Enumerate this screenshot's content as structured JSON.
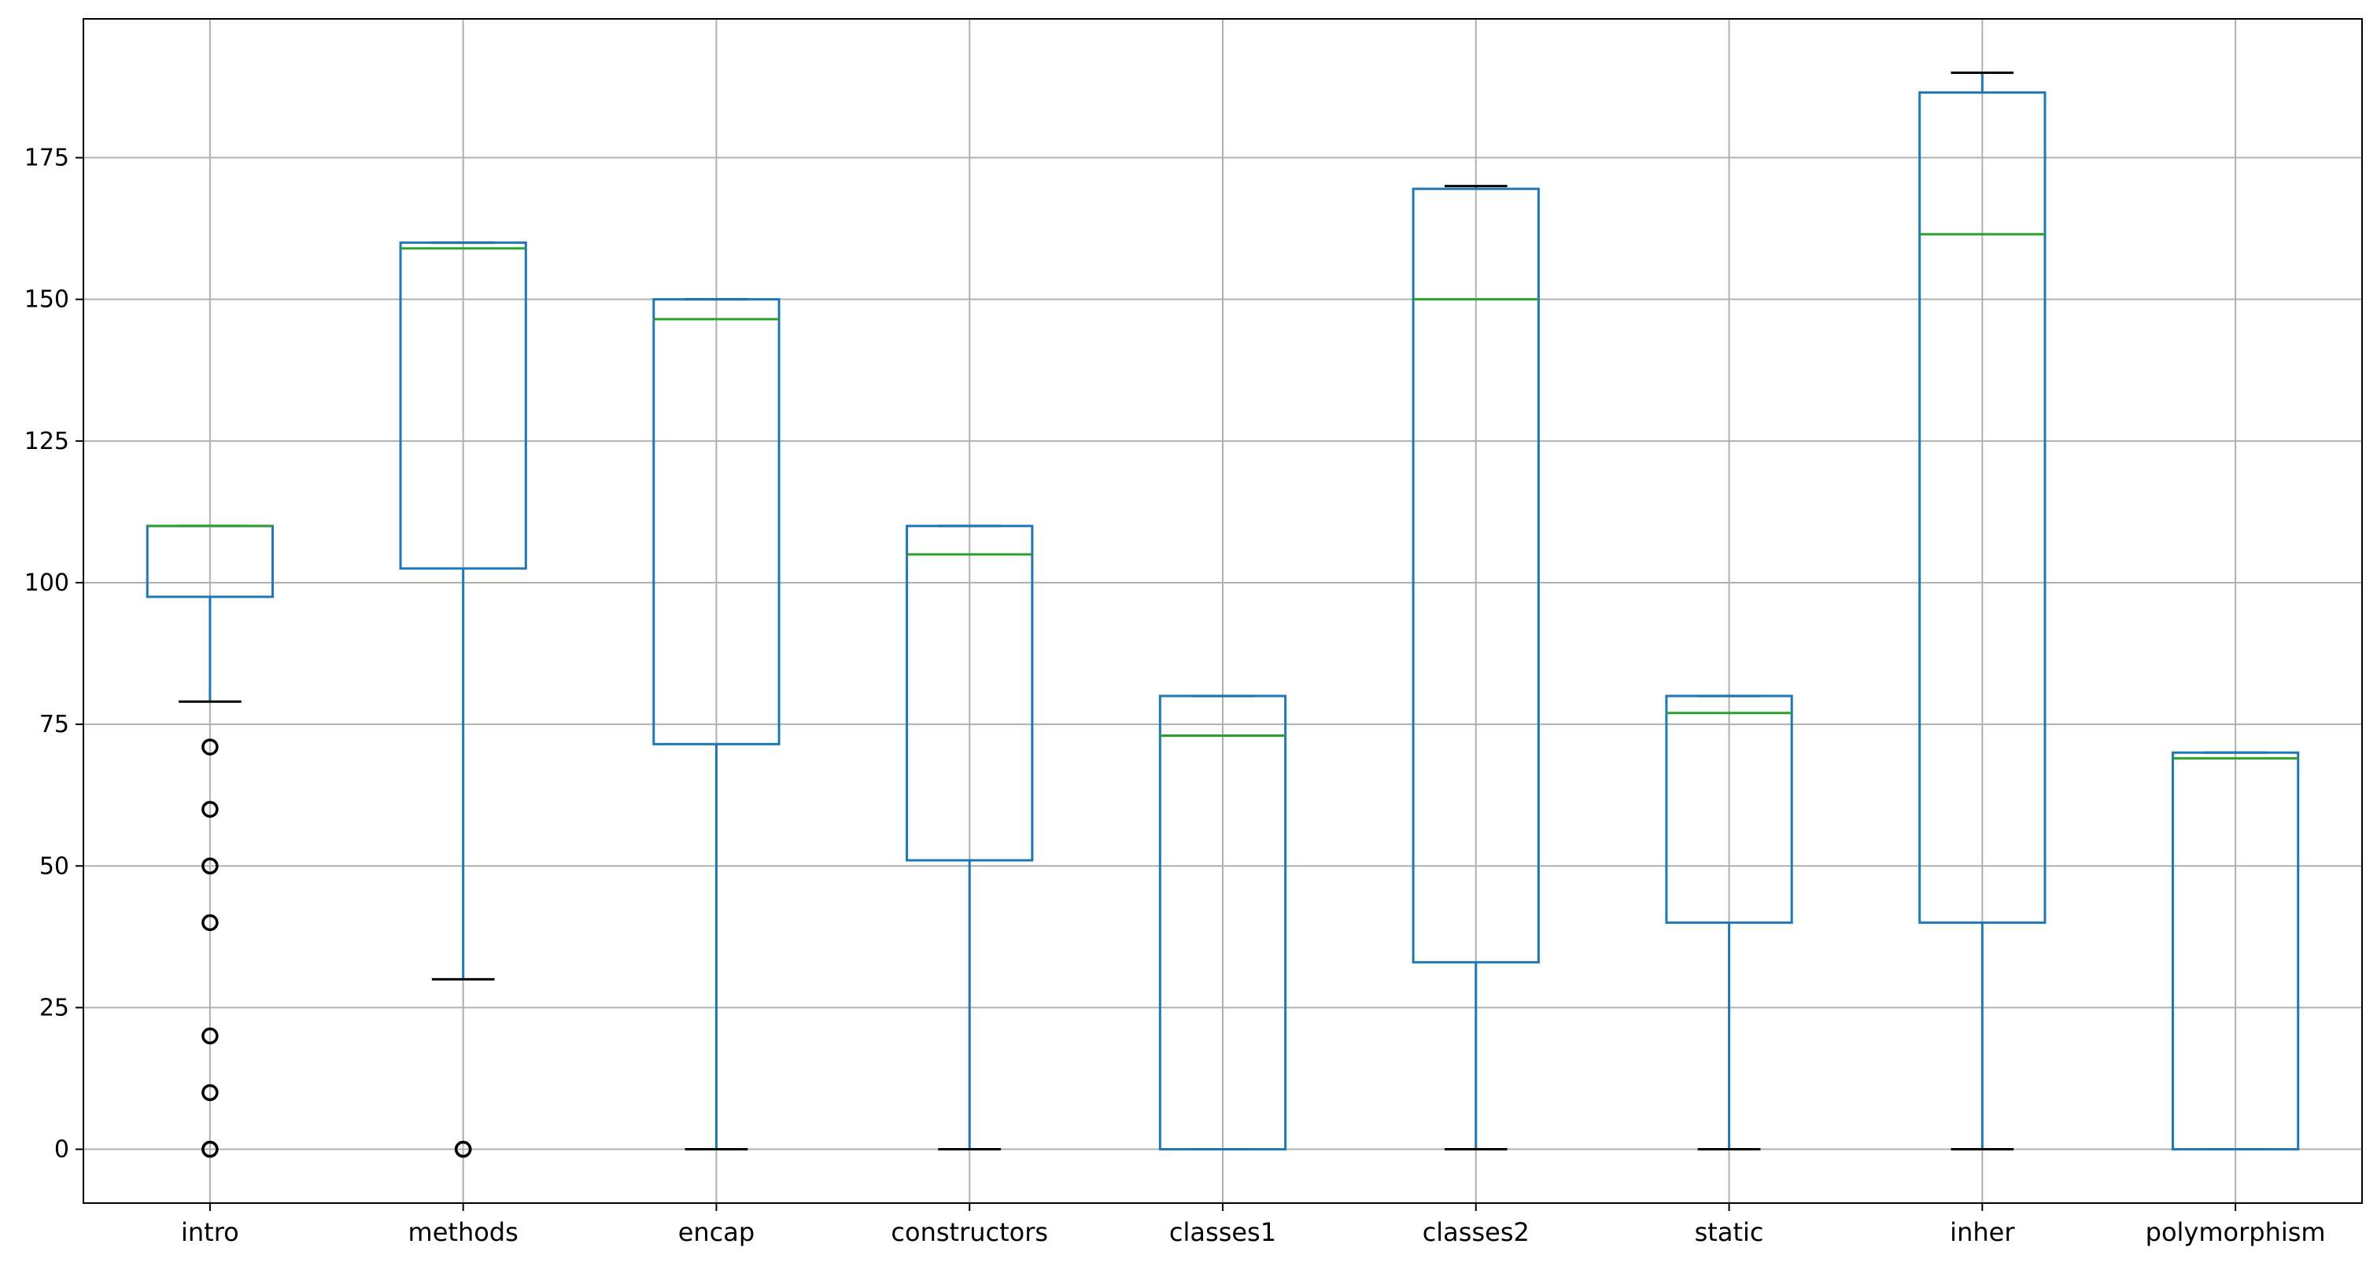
{
  "chart_data": {
    "type": "box",
    "categories": [
      "intro",
      "methods",
      "encap",
      "constructors",
      "classes1",
      "classes2",
      "static",
      "inher",
      "polymorphism"
    ],
    "boxes": [
      {
        "name": "intro",
        "whisker_low": 79,
        "q1": 97.5,
        "median": 110,
        "q3": 110,
        "whisker_high": 110,
        "outliers": [
          71,
          60,
          50,
          40,
          20,
          10,
          0,
          0
        ]
      },
      {
        "name": "methods",
        "whisker_low": 30,
        "q1": 102.5,
        "median": 159,
        "q3": 160,
        "whisker_high": 160,
        "outliers": [
          0,
          0
        ]
      },
      {
        "name": "encap",
        "whisker_low": 0,
        "q1": 71.5,
        "median": 146.5,
        "q3": 150,
        "whisker_high": 150,
        "outliers": []
      },
      {
        "name": "constructors",
        "whisker_low": 0,
        "q1": 51,
        "median": 105,
        "q3": 110,
        "whisker_high": 110,
        "outliers": []
      },
      {
        "name": "classes1",
        "whisker_low": 0,
        "q1": 0,
        "median": 73,
        "q3": 80,
        "whisker_high": 80,
        "outliers": []
      },
      {
        "name": "classes2",
        "whisker_low": 0,
        "q1": 33,
        "median": 150,
        "q3": 169.5,
        "whisker_high": 170,
        "outliers": []
      },
      {
        "name": "static",
        "whisker_low": 0,
        "q1": 40,
        "median": 77,
        "q3": 80,
        "whisker_high": 80,
        "outliers": []
      },
      {
        "name": "inher",
        "whisker_low": 0,
        "q1": 40,
        "median": 161.5,
        "q3": 186.5,
        "whisker_high": 190,
        "outliers": []
      },
      {
        "name": "polymorphism",
        "whisker_low": 0,
        "q1": 0,
        "median": 69,
        "q3": 70,
        "whisker_high": 70,
        "outliers": []
      }
    ],
    "y_ticks": [
      0,
      25,
      50,
      75,
      100,
      125,
      150,
      175
    ],
    "ylim": [
      -9.5,
      199.5
    ],
    "grid": true,
    "colors": {
      "box": "#1f77b4",
      "median": "#2ca02c",
      "whisker_cap": "#000000",
      "grid": "#b0b0b0",
      "outlier": "#000000"
    }
  }
}
